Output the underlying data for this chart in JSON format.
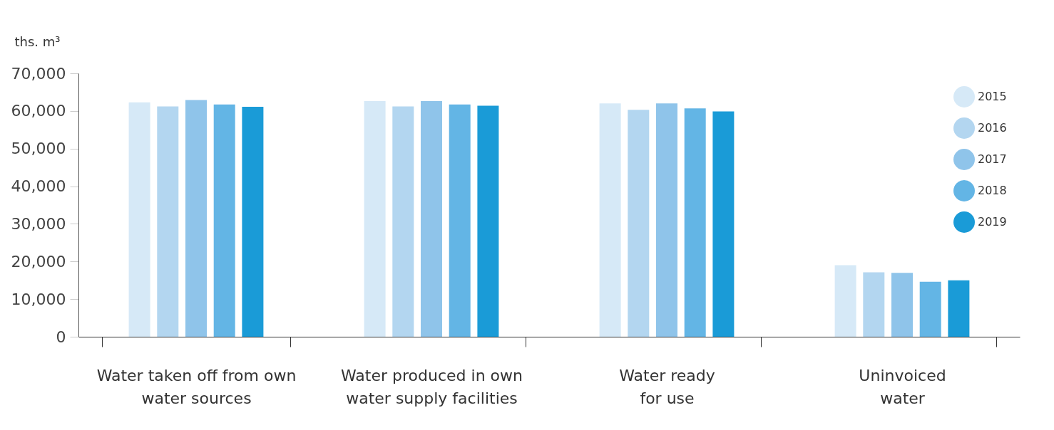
{
  "chart_data": {
    "type": "bar",
    "ylabel": "ths. m³",
    "categories": [
      "Water taken off from own\nwater sources",
      "Water produced in own\nwater supply facilities",
      "Water ready\nfor use",
      "Uninvoiced\nwater"
    ],
    "series": [
      {
        "name": "2015",
        "color": "#d6e9f7",
        "values": [
          62300,
          62600,
          62000,
          19000
        ]
      },
      {
        "name": "2016",
        "color": "#b3d6f0",
        "values": [
          61200,
          61200,
          60300,
          17100
        ]
      },
      {
        "name": "2017",
        "color": "#8fc4ea",
        "values": [
          62900,
          62600,
          62000,
          17000
        ]
      },
      {
        "name": "2018",
        "color": "#63b5e5",
        "values": [
          61700,
          61700,
          60700,
          14600
        ]
      },
      {
        "name": "2019",
        "color": "#1a9bd7",
        "values": [
          61100,
          61400,
          59900,
          15000
        ]
      }
    ],
    "ylim": [
      0,
      70000
    ],
    "yticks": [
      0,
      {
        "value": 10000,
        "label": "10,000"
      },
      {
        "value": 20000,
        "label": "20,000"
      },
      {
        "value": 30000,
        "label": "30,000"
      },
      {
        "value": 40000,
        "label": "40,000"
      },
      {
        "value": 50000,
        "label": "50,000"
      },
      {
        "value": 60000,
        "label": "60,000"
      },
      {
        "value": 70000,
        "label": "70,000"
      }
    ],
    "grid": false,
    "legend": "top right"
  }
}
